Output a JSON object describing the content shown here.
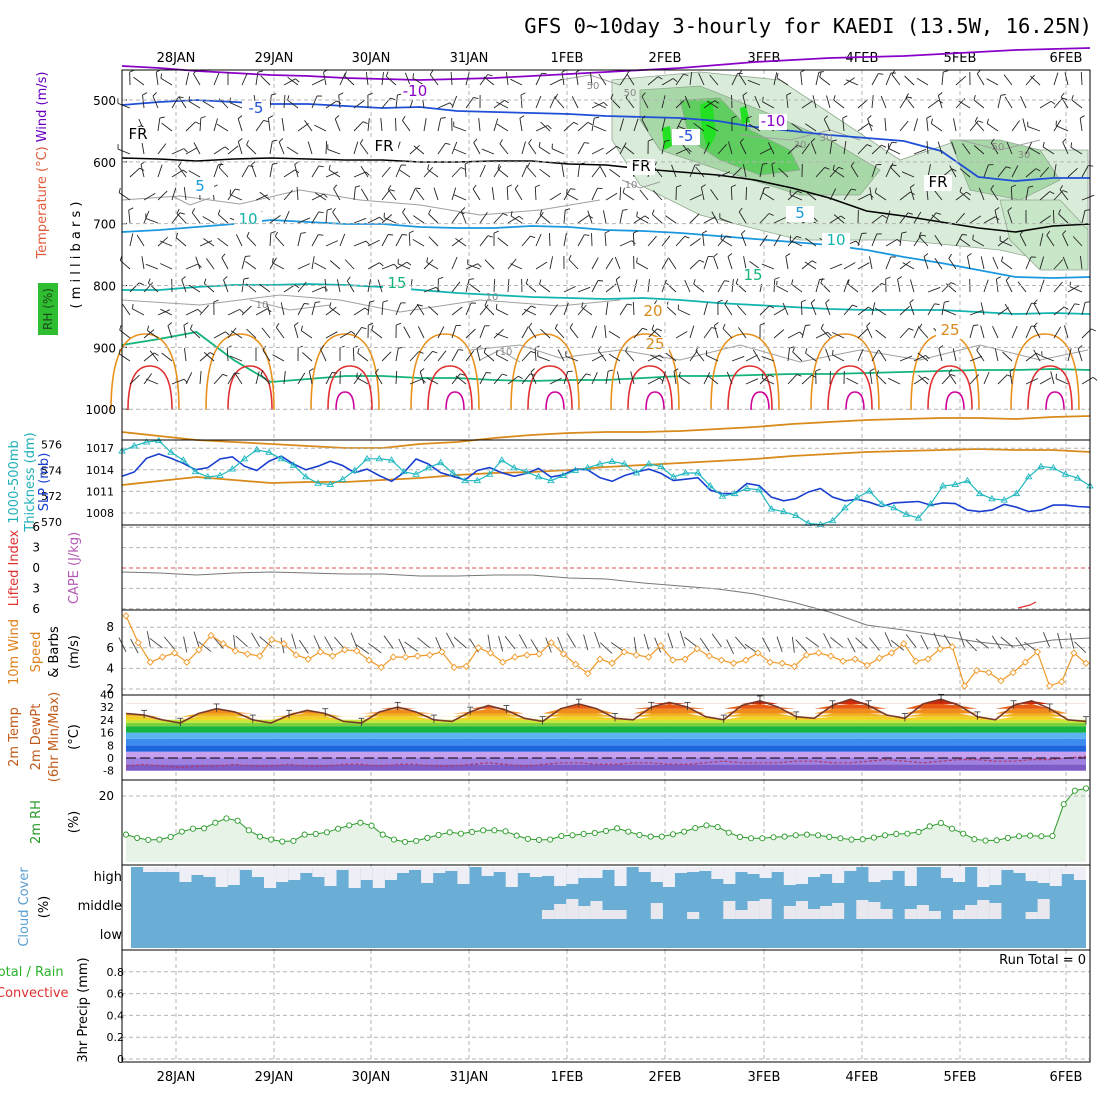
{
  "title": "GFS 0~10day 3-hourly for KAEDI (13.5W, 16.25N)",
  "date_labels": [
    "28JAN",
    "29JAN",
    "30JAN",
    "31JAN",
    "1FEB",
    "2FEB",
    "3FEB",
    "4FEB",
    "5FEB",
    "6FEB"
  ],
  "colors": {
    "background": "#ffffff",
    "grid": "#b4b4b4",
    "purple": "#8a00c8",
    "blue": "#1f4fd6",
    "lightblue": "#1a98e0",
    "teal": "#12b4b0",
    "green_line": "#14b478",
    "orange": "#d88a1a",
    "red": "#e03030",
    "magenta": "#d0009a",
    "rh_green": "#2fbe2f",
    "slp_blue": "#1a3fd0",
    "thick_cyan": "#20b8c0",
    "wind_orange": "#ef9a2a",
    "cloud_blue": "#6aaed6",
    "cloud_white": "#eeeef6"
  },
  "chart_data": [
    {
      "panel": "upper-air",
      "type": "line",
      "left_labels": [
        "Wind (m/s)",
        "Temperature (°C)",
        "RH (%)"
      ],
      "ylabel": "( m i l l i b a r s )",
      "yticks": [
        500,
        600,
        700,
        800,
        900,
        1000
      ],
      "ylim": [
        1000,
        450
      ],
      "isotherm_labels": [
        {
          "text": "-10",
          "color": "#8a00c8"
        },
        {
          "text": "-10",
          "color": "#8a00c8"
        },
        {
          "text": "-5",
          "color": "#1f4fd6"
        },
        {
          "text": "-5",
          "color": "#1f4fd6"
        },
        {
          "text": "FR",
          "color": "#000000"
        },
        {
          "text": "FR",
          "color": "#000000"
        },
        {
          "text": "FR",
          "color": "#000000"
        },
        {
          "text": "FR",
          "color": "#000000"
        },
        {
          "text": "5",
          "color": "#1a98e0"
        },
        {
          "text": "5",
          "color": "#1a98e0"
        },
        {
          "text": "10",
          "color": "#12b4b0"
        },
        {
          "text": "10",
          "color": "#12b4b0"
        },
        {
          "text": "15",
          "color": "#14b478"
        },
        {
          "text": "15",
          "color": "#14b478"
        },
        {
          "text": "20",
          "color": "#d88a1a"
        },
        {
          "text": "25",
          "color": "#d88a1a"
        },
        {
          "text": "25",
          "color": "#d88a1a"
        }
      ],
      "rh_contour_labels": [
        "50",
        "30",
        "50",
        "30",
        "50",
        "30",
        "10",
        "10",
        "10",
        "10"
      ],
      "isotherms": [
        {
          "name": "-10",
          "color": "#8a00c8",
          "y": [
            476,
            478,
            481,
            483,
            485,
            486,
            488,
            489,
            490,
            489,
            488,
            486,
            484,
            482,
            480,
            478,
            475,
            472,
            470,
            468,
            467,
            466,
            464,
            462,
            460,
            459,
            458
          ]
        },
        {
          "name": "-5",
          "color": "#1f4fd6",
          "y": [
            515,
            512,
            510,
            512,
            514,
            514,
            516,
            518,
            517,
            521,
            522,
            523,
            524,
            526,
            527,
            528,
            531,
            537,
            541,
            545,
            548,
            551,
            561,
            587,
            591,
            588,
            588
          ]
        },
        {
          "name": "FR",
          "color": "#000000",
          "y": [
            568,
            569,
            571,
            569,
            568,
            569,
            570,
            570,
            572,
            572,
            571,
            571,
            574,
            575,
            579,
            582,
            585,
            590,
            598,
            608,
            621,
            626,
            632,
            638,
            642,
            636,
            634
          ]
        },
        {
          "name": "5",
          "color": "#1a98e0",
          "y": [
            642,
            640,
            637,
            634,
            630,
            632,
            634,
            634,
            637,
            638,
            638,
            636,
            637,
            640,
            641,
            643,
            646,
            649,
            652,
            655,
            660,
            667,
            673,
            680,
            687,
            688,
            687
          ]
        },
        {
          "name": "10",
          "color": "#12b4b0",
          "y": [
            700,
            700,
            697,
            695,
            695,
            694,
            695,
            697,
            700,
            703,
            705,
            707,
            708,
            709,
            708,
            710,
            713,
            715,
            717,
            719,
            720,
            720,
            720,
            722,
            724,
            723,
            724
          ]
        },
        {
          "name": "15",
          "color": "#14b478",
          "y": [
            755,
            749,
            742,
            770,
            792,
            789,
            786,
            786,
            788,
            788,
            790,
            791,
            790,
            790,
            788,
            786,
            786,
            785,
            784,
            784,
            783,
            782,
            781,
            780,
            780,
            779,
            780
          ]
        },
        {
          "name": "20",
          "color": "#d88a1a",
          "y": [
            842,
            846,
            850,
            852,
            854,
            856,
            858,
            858,
            854,
            852,
            848,
            845,
            843,
            842,
            842,
            841,
            839,
            837,
            834,
            832,
            830,
            829,
            828,
            828,
            829,
            827,
            826
          ]
        },
        {
          "name": "25",
          "color": "#d88a1a",
          "y": [
            895,
            891,
            887,
            890,
            893,
            892,
            892,
            890,
            888,
            885,
            883,
            882,
            880,
            877,
            875,
            873,
            871,
            869,
            866,
            864,
            862,
            861,
            860,
            859,
            860,
            860,
            862
          ]
        }
      ]
    },
    {
      "panel": "thickness-slp",
      "type": "line",
      "left_labels": [
        "1000-500mb",
        "Thickness (dm)",
        "SLP (mb)"
      ],
      "thickness_ticks": [
        570,
        572,
        574,
        576
      ],
      "slp_ticks": [
        1008,
        1011,
        1014,
        1017
      ],
      "series": [
        {
          "name": "SLP (mb)",
          "color": "#1a3fd0",
          "values": [
            1013.1,
            1013.7,
            1015.6,
            1016.2,
            1015.6,
            1014.9,
            1014.0,
            1014.3,
            1015.5,
            1015.8,
            1014.5,
            1013.9,
            1015.2,
            1015.9,
            1014.8,
            1014.0,
            1014.5,
            1015.2,
            1014.6,
            1013.6,
            1014.1,
            1013.2,
            1012.4,
            1013.6,
            1015.5,
            1014.8,
            1013.6,
            1013.1,
            1012.6,
            1013.9,
            1014.3,
            1013.6,
            1013.1,
            1013.5,
            1014.2,
            1013.0,
            1013.3,
            1014.1,
            1014.0,
            1012.9,
            1012.4,
            1013.2,
            1013.7,
            1014.1,
            1013.5,
            1012.5,
            1012.7,
            1012.9,
            1011.2,
            1010.7,
            1010.7,
            1012.1,
            1011.8,
            1010.2,
            1009.7,
            1010.0,
            1010.9,
            1011.4,
            1010.2,
            1009.7,
            1009.9,
            1009.5,
            1008.9,
            1009.4,
            1009.5,
            1009.6,
            1009.1,
            1009.4,
            1009.3,
            1008.4,
            1008.2,
            1008.4,
            1009.2,
            1008.8,
            1008.2,
            1008.4,
            1009.1,
            1009.1,
            1008.9,
            1008.8
          ]
        },
        {
          "name": "1000-500mb Thickness (dm)",
          "color": "#20b8c0",
          "values": [
            575.5,
            575.9,
            576.2,
            576.3,
            575.4,
            574.8,
            573.9,
            573.5,
            573.6,
            574.1,
            574.9,
            575.6,
            575.4,
            574.9,
            574.4,
            573.5,
            573.0,
            572.9,
            573.3,
            574.0,
            574.9,
            574.9,
            574.8,
            573.9,
            573.7,
            574.2,
            574.6,
            573.8,
            573.2,
            573.2,
            573.7,
            574.8,
            574.2,
            573.9,
            573.5,
            573.2,
            573.6,
            574.0,
            574.2,
            574.5,
            574.7,
            574.5,
            573.8,
            574.5,
            574.3,
            573.5,
            573.8,
            573.8,
            572.8,
            572.0,
            572.2,
            572.6,
            572.5,
            571.0,
            570.8,
            570.5,
            569.9,
            569.8,
            570.1,
            571.1,
            571.9,
            572.4,
            571.4,
            571.1,
            570.6,
            570.3,
            571.4,
            572.8,
            572.9,
            573.2,
            572.2,
            571.8,
            571.7,
            572.2,
            573.5,
            574.3,
            574.2,
            573.7,
            573.4,
            572.8
          ]
        }
      ]
    },
    {
      "panel": "stability",
      "type": "line",
      "left_labels": [
        "Lifted Index",
        "CAPE (J/kg)"
      ],
      "yticks": [
        -6,
        -3,
        0,
        3,
        6
      ],
      "ytick_labels": [
        "6",
        "3",
        "0",
        "3",
        "6"
      ]
    },
    {
      "panel": "10m-wind",
      "type": "line",
      "left_labels": [
        "10m Wind",
        "Speed",
        "& Barbs",
        "(m/s)"
      ],
      "yticks": [
        2,
        4,
        6,
        8
      ],
      "series": [
        {
          "name": "10m Wind Speed",
          "color": "#ef9a2a",
          "values": [
            9.1,
            6.5,
            4.6,
            5.1,
            5.5,
            4.6,
            5.8,
            7.2,
            6.4,
            5.7,
            5.4,
            5.2,
            6.8,
            6.4,
            5.3,
            4.9,
            5.6,
            5.2,
            5.8,
            5.7,
            4.8,
            4.1,
            5.1,
            5.1,
            5.2,
            5.3,
            5.6,
            4.1,
            4.2,
            6.0,
            5.5,
            4.6,
            5.1,
            5.3,
            5.4,
            6.5,
            5.4,
            4.4,
            3.5,
            4.9,
            4.5,
            5.6,
            5.3,
            5.1,
            6.2,
            4.8,
            4.9,
            5.9,
            5.2,
            4.8,
            4.5,
            4.8,
            5.5,
            4.6,
            4.5,
            4.2,
            5.3,
            5.5,
            5.2,
            4.7,
            4.9,
            4.3,
            5.0,
            5.5,
            6.4,
            4.7,
            4.9,
            5.9,
            6.1,
            2.3,
            3.8,
            3.6,
            2.8,
            3.6,
            4.6,
            5.6,
            2.3,
            2.7,
            5.5,
            4.5
          ]
        }
      ]
    },
    {
      "panel": "2m-temp",
      "type": "area",
      "left_labels": [
        "2m Temp",
        "2m DewPt",
        "(6hr Min/Max)",
        "(°C)"
      ],
      "yticks": [
        -8,
        0,
        8,
        16,
        24,
        32,
        40
      ],
      "series": [
        {
          "name": "2m Temp",
          "color": "#7a3a2a",
          "values": [
            28,
            27,
            24,
            22,
            28,
            31,
            29,
            24,
            22,
            27,
            30,
            28,
            23,
            22,
            29,
            32,
            29,
            24,
            23,
            29,
            33,
            30,
            25,
            23,
            31,
            34,
            31,
            25,
            24,
            32,
            35,
            32,
            26,
            24,
            33,
            36,
            32,
            26,
            25,
            33,
            37,
            33,
            27,
            25,
            34,
            37,
            33,
            26,
            24,
            33,
            36,
            31,
            24,
            23
          ]
        },
        {
          "name": "2m DewPt",
          "color": "#b03a6a",
          "values": [
            -5,
            -4,
            -5,
            -6,
            -5,
            -5,
            -4,
            -5,
            -5,
            -4,
            -5,
            -5,
            -4,
            -4,
            -5,
            -4,
            -4,
            -5,
            -5,
            -4,
            -3,
            -4,
            -5,
            -4,
            -3,
            -3,
            -4,
            -4,
            -3,
            -3,
            -4,
            -4,
            -3,
            -2,
            -3,
            -3,
            -3,
            -2,
            -2,
            -3,
            -3,
            -2,
            -1,
            -2,
            -3,
            -2,
            -1,
            -1,
            -2,
            -2,
            -1,
            -1,
            0,
            1
          ]
        }
      ]
    },
    {
      "panel": "2m-rh",
      "type": "line",
      "left_labels": [
        "2m RH",
        "(%)"
      ],
      "yticks": [
        20
      ],
      "series": [
        {
          "name": "2m RH",
          "color": "#2a9a2a",
          "values": [
            8.3,
            7.3,
            6.7,
            6.8,
            7.6,
            9.2,
            10.1,
            10.2,
            11.9,
            13.2,
            12.5,
            9.6,
            7.7,
            6.8,
            6.2,
            6.4,
            8.3,
            8.5,
            9.0,
            10.1,
            11.1,
            11.9,
            11.0,
            8.3,
            6.8,
            6.1,
            6.4,
            7.3,
            8.2,
            9.0,
            8.6,
            9.1,
            9.6,
            9.6,
            9.3,
            8.0,
            7.0,
            6.7,
            6.8,
            7.9,
            8.1,
            8.5,
            8.8,
            9.4,
            10.2,
            9.2,
            8.2,
            7.7,
            7.7,
            8.4,
            9.2,
            10.3,
            11.1,
            10.6,
            8.9,
            7.6,
            7.2,
            7.2,
            7.5,
            7.7,
            8.1,
            8.3,
            8.1,
            7.6,
            7.2,
            6.8,
            6.9,
            7.4,
            8.1,
            8.5,
            8.6,
            9.1,
            10.8,
            11.8,
            10.1,
            8.6,
            6.9,
            6.5,
            6.6,
            7.3,
            7.8,
            8.0,
            7.8,
            7.9,
            17.5,
            21.6,
            22.3
          ]
        }
      ]
    },
    {
      "panel": "cloud-cover",
      "type": "bar",
      "left_labels": [
        "Cloud Cover",
        "(%)"
      ],
      "level_labels": [
        "high",
        "middle",
        "low"
      ]
    },
    {
      "panel": "precip",
      "type": "line",
      "left_labels": [
        "Total / Rain",
        "Convective",
        "3hr Precip (mm)"
      ],
      "yticks": [
        0,
        0.2,
        0.4,
        0.6,
        0.8
      ],
      "ylim": [
        0,
        1
      ],
      "annotation": "Run Total = 0"
    }
  ]
}
